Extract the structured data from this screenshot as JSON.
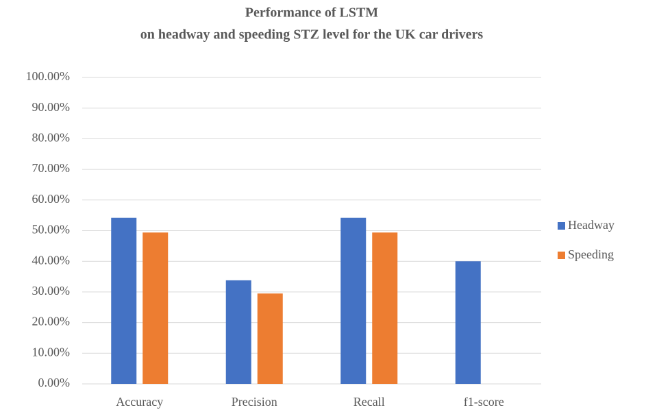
{
  "chart_data": {
    "type": "bar",
    "title": [
      "Performance of LSTM",
      "on headway and speeding STZ level for the UK car drivers"
    ],
    "categories": [
      "Accuracy",
      "Precision",
      "Recall",
      "f1-score"
    ],
    "series": [
      {
        "name": "Headway",
        "color": "#4472c4",
        "values": [
          54.2,
          33.8,
          54.2,
          40.0
        ]
      },
      {
        "name": "Speeding",
        "color": "#ed7d31",
        "values": [
          49.4,
          29.5,
          49.4,
          null
        ]
      }
    ],
    "ylim": [
      0,
      100
    ],
    "yticks": [
      {
        "value": 0,
        "label": "0.00%"
      },
      {
        "value": 10,
        "label": "10.00%"
      },
      {
        "value": 20,
        "label": "20.00%"
      },
      {
        "value": 30,
        "label": "30.00%"
      },
      {
        "value": 40,
        "label": "40.00%"
      },
      {
        "value": 50,
        "label": "50.00%"
      },
      {
        "value": 60,
        "label": "60.00%"
      },
      {
        "value": 70,
        "label": "70.00%"
      },
      {
        "value": 80,
        "label": "80.00%"
      },
      {
        "value": 90,
        "label": "90.00%"
      },
      {
        "value": 100,
        "label": "100.00%"
      }
    ],
    "grid": true,
    "legend": "right"
  }
}
